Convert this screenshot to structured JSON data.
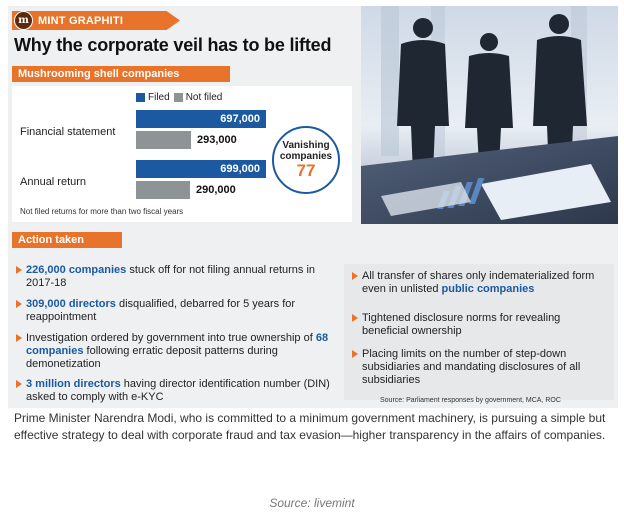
{
  "brand": {
    "logo_text": "m",
    "name": "MINT GRAPHITI"
  },
  "title": "Why the corporate veil has to be lifted",
  "chart_section_title": "Mushrooming shell companies",
  "chart_data": {
    "type": "bar",
    "orientation": "horizontal",
    "categories": [
      "Financial statement",
      "Annual return"
    ],
    "series": [
      {
        "name": "Filed",
        "values": [
          697000,
          699000
        ],
        "labels": [
          "697,000",
          "699,000"
        ],
        "color": "#1b5aa0"
      },
      {
        "name": "Not filed",
        "values": [
          293000,
          290000
        ],
        "labels": [
          "293,000",
          "290,000"
        ],
        "color": "#8e9396"
      }
    ],
    "xlim": [
      0,
      750000
    ],
    "legend_position": "top",
    "note": "Not filed returns for more than two fiscal years",
    "callout": {
      "label": "Vanishing companies",
      "value": "77"
    }
  },
  "actions_title": "Action taken",
  "actions_left": [
    {
      "highlight": "226,000 companies",
      "text": " stuck off for not filing annual returns in 2017-18"
    },
    {
      "highlight": "309,000 directors",
      "text": " disqualified, debarred for 5 years for reappointment"
    },
    {
      "pre": "Investigation ordered by government into true ownership of ",
      "highlight": "68 companies",
      "text": " following erratic deposit patterns during demonetization"
    },
    {
      "highlight": "3 million directors",
      "text": " having director identification number (DIN) asked to comply with e-KYC"
    }
  ],
  "actions_right": [
    {
      "pre": "All transfer of shares only indematerialized form even in unlisted ",
      "highlight": "public companies",
      "text": ""
    },
    {
      "pre": "Tightened disclosure norms for revealing beneficial ownership",
      "highlight": "",
      "text": ""
    },
    {
      "pre": "Placing limits on the number of step-down subsidiaries and mandating disclosures of all subsidiaries",
      "highlight": "",
      "text": ""
    }
  ],
  "source_note": "Source: Parliament responses by government, MCA, ROC",
  "caption": "Prime Minister Narendra Modi, who is committed to a minimum government machinery, is pursuing a simple but effective strategy to deal with corporate fraud and tax evasion—higher transparency in the affairs of companies.",
  "credit": "Source: livemint"
}
